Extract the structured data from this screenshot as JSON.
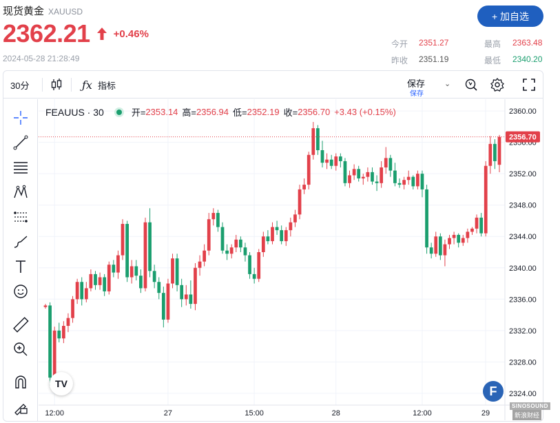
{
  "header": {
    "name": "现货黄金",
    "code": "XAUUSD",
    "price": "2362.21",
    "change": "+0.46%",
    "timestamp": "2024-05-28 21:28:49",
    "add_button": "+ 加自选"
  },
  "stats": {
    "open_label": "今开",
    "open": "2351.27",
    "high_label": "最高",
    "high": "2363.48",
    "prev_label": "昨收",
    "prev": "2351.19",
    "low_label": "最低",
    "low": "2340.20"
  },
  "toolbar": {
    "interval": "30分",
    "indicators": "指标",
    "save": "保存",
    "save_sub": "保存"
  },
  "tools": [
    "crosshair-icon",
    "trend-line-icon",
    "fib-icon",
    "pattern-icon",
    "prediction-icon",
    "brush-icon",
    "text-icon",
    "emoji-icon",
    "ruler-icon",
    "zoom-in-icon",
    "magnet-icon",
    "lock-draw-icon"
  ],
  "legend": {
    "symbol": "FEAUUS · 30",
    "open_label": "开=",
    "open": "2353.14",
    "high_label": "高=",
    "high": "2356.94",
    "low_label": "低=",
    "low": "2352.19",
    "close_label": "收=",
    "close": "2356.70",
    "change": "+3.43 (+0.15%)"
  },
  "colors": {
    "up": "#e2404a",
    "down": "#1a9e6e",
    "accent": "#1f5fbf"
  },
  "logos": {
    "tradingview": "TV",
    "brand_f": "F",
    "watermark": "SINOSOUND",
    "watermark2": "新浪财经"
  },
  "chart_data": {
    "type": "candlestick",
    "y_ticks": [
      "2360.00",
      "2356.00",
      "2352.00",
      "2348.00",
      "2344.00",
      "2340.00",
      "2336.00",
      "2332.00",
      "2328.00",
      "2324.00"
    ],
    "ylim": [
      2322.5,
      2361.5
    ],
    "x_ticks": [
      "12:00",
      "27",
      "15:00",
      "28",
      "12:00",
      "29"
    ],
    "last_price_label": "2356.70",
    "last_price": 2356.7,
    "candles": [
      [
        2335.0,
        2335.4,
        2334.8,
        2335.2
      ],
      [
        2335.2,
        2335.6,
        2325.0,
        2326.0
      ],
      [
        2326.0,
        2332.5,
        2325.6,
        2332.0
      ],
      [
        2332.0,
        2333.0,
        2330.5,
        2331.0
      ],
      [
        2331.0,
        2333.2,
        2330.4,
        2332.6
      ],
      [
        2332.6,
        2334.2,
        2331.8,
        2333.6
      ],
      [
        2333.6,
        2336.4,
        2333.0,
        2336.0
      ],
      [
        2336.0,
        2338.6,
        2335.4,
        2338.2
      ],
      [
        2338.2,
        2338.8,
        2335.2,
        2336.0
      ],
      [
        2336.0,
        2338.2,
        2335.6,
        2337.4
      ],
      [
        2337.4,
        2339.8,
        2337.0,
        2339.2
      ],
      [
        2339.2,
        2339.6,
        2337.2,
        2337.8
      ],
      [
        2337.8,
        2339.4,
        2337.2,
        2338.8
      ],
      [
        2338.8,
        2339.2,
        2336.4,
        2337.0
      ],
      [
        2337.0,
        2340.8,
        2336.6,
        2340.4
      ],
      [
        2340.4,
        2341.0,
        2338.8,
        2339.4
      ],
      [
        2339.4,
        2342.2,
        2338.6,
        2341.6
      ],
      [
        2341.6,
        2346.2,
        2341.0,
        2345.6
      ],
      [
        2345.6,
        2346.0,
        2338.2,
        2338.8
      ],
      [
        2338.8,
        2341.0,
        2338.0,
        2340.2
      ],
      [
        2340.2,
        2341.0,
        2338.4,
        2339.0
      ],
      [
        2339.0,
        2339.8,
        2336.8,
        2337.4
      ],
      [
        2337.4,
        2346.4,
        2337.0,
        2345.8
      ],
      [
        2345.8,
        2347.6,
        2338.8,
        2339.6
      ],
      [
        2339.6,
        2340.4,
        2337.4,
        2338.2
      ],
      [
        2338.2,
        2338.8,
        2336.0,
        2336.8
      ],
      [
        2336.8,
        2337.6,
        2332.4,
        2333.4
      ],
      [
        2333.4,
        2338.6,
        2333.0,
        2338.0
      ],
      [
        2338.0,
        2341.8,
        2337.4,
        2341.2
      ],
      [
        2341.2,
        2341.8,
        2337.0,
        2337.8
      ],
      [
        2337.8,
        2338.6,
        2335.0,
        2336.0
      ],
      [
        2336.0,
        2337.8,
        2335.2,
        2336.6
      ],
      [
        2336.6,
        2338.4,
        2334.8,
        2335.4
      ],
      [
        2335.4,
        2340.6,
        2334.6,
        2340.0
      ],
      [
        2340.0,
        2341.6,
        2339.0,
        2340.8
      ],
      [
        2340.8,
        2343.0,
        2340.2,
        2342.2
      ],
      [
        2342.2,
        2347.0,
        2341.6,
        2346.2
      ],
      [
        2346.2,
        2347.6,
        2345.4,
        2347.0
      ],
      [
        2347.0,
        2347.4,
        2344.6,
        2345.2
      ],
      [
        2345.2,
        2345.8,
        2341.8,
        2342.2
      ],
      [
        2342.2,
        2343.0,
        2341.0,
        2341.8
      ],
      [
        2341.8,
        2343.0,
        2341.2,
        2342.6
      ],
      [
        2342.6,
        2344.2,
        2342.0,
        2343.6
      ],
      [
        2343.6,
        2344.0,
        2342.0,
        2342.6
      ],
      [
        2342.6,
        2343.2,
        2340.8,
        2341.6
      ],
      [
        2341.6,
        2342.0,
        2338.6,
        2339.2
      ],
      [
        2339.2,
        2340.0,
        2338.0,
        2338.6
      ],
      [
        2338.6,
        2342.4,
        2338.2,
        2342.0
      ],
      [
        2342.0,
        2344.6,
        2341.4,
        2344.0
      ],
      [
        2344.0,
        2344.8,
        2343.0,
        2343.4
      ],
      [
        2343.4,
        2345.8,
        2343.0,
        2345.2
      ],
      [
        2345.2,
        2346.0,
        2344.2,
        2344.8
      ],
      [
        2344.8,
        2345.4,
        2343.0,
        2343.4
      ],
      [
        2343.4,
        2345.2,
        2342.8,
        2344.8
      ],
      [
        2344.8,
        2346.4,
        2344.0,
        2345.8
      ],
      [
        2345.8,
        2347.4,
        2345.2,
        2346.8
      ],
      [
        2346.8,
        2350.6,
        2346.2,
        2350.0
      ],
      [
        2350.0,
        2351.4,
        2349.4,
        2350.6
      ],
      [
        2350.6,
        2354.8,
        2350.0,
        2354.4
      ],
      [
        2354.4,
        2358.6,
        2353.8,
        2357.8
      ],
      [
        2357.8,
        2358.2,
        2354.4,
        2355.0
      ],
      [
        2355.0,
        2356.2,
        2352.8,
        2353.4
      ],
      [
        2353.4,
        2354.6,
        2352.6,
        2353.8
      ],
      [
        2353.8,
        2354.4,
        2352.6,
        2353.0
      ],
      [
        2353.0,
        2354.6,
        2352.4,
        2354.2
      ],
      [
        2354.2,
        2354.6,
        2352.8,
        2353.6
      ],
      [
        2353.6,
        2354.0,
        2350.4,
        2350.8
      ],
      [
        2350.8,
        2352.4,
        2350.2,
        2351.8
      ],
      [
        2351.8,
        2353.2,
        2351.2,
        2352.6
      ],
      [
        2352.6,
        2353.0,
        2351.0,
        2351.4
      ],
      [
        2351.4,
        2352.0,
        2350.6,
        2351.6
      ],
      [
        2351.6,
        2352.8,
        2351.0,
        2352.2
      ],
      [
        2352.2,
        2352.8,
        2350.6,
        2351.0
      ],
      [
        2351.0,
        2351.8,
        2349.8,
        2350.8
      ],
      [
        2350.8,
        2353.6,
        2350.2,
        2352.8
      ],
      [
        2352.8,
        2355.4,
        2352.0,
        2354.0
      ],
      [
        2354.0,
        2354.4,
        2351.6,
        2352.4
      ],
      [
        2352.4,
        2353.4,
        2350.4,
        2350.8
      ],
      [
        2350.8,
        2351.4,
        2350.2,
        2350.6
      ],
      [
        2350.6,
        2351.6,
        2350.0,
        2351.2
      ],
      [
        2351.2,
        2352.4,
        2350.6,
        2351.6
      ],
      [
        2351.6,
        2351.8,
        2350.0,
        2350.4
      ],
      [
        2350.4,
        2352.4,
        2350.0,
        2352.0
      ],
      [
        2352.0,
        2352.4,
        2349.0,
        2350.0
      ],
      [
        2350.0,
        2350.6,
        2341.8,
        2342.6
      ],
      [
        2342.6,
        2343.2,
        2341.2,
        2341.8
      ],
      [
        2341.8,
        2344.6,
        2341.4,
        2344.0
      ],
      [
        2344.0,
        2344.4,
        2341.0,
        2341.6
      ],
      [
        2341.6,
        2343.6,
        2340.2,
        2343.0
      ],
      [
        2343.0,
        2344.2,
        2342.4,
        2343.8
      ],
      [
        2343.8,
        2344.6,
        2343.0,
        2344.2
      ],
      [
        2344.2,
        2344.4,
        2342.6,
        2343.2
      ],
      [
        2343.2,
        2344.2,
        2342.8,
        2343.8
      ],
      [
        2343.8,
        2345.0,
        2343.2,
        2344.6
      ],
      [
        2344.6,
        2345.2,
        2344.2,
        2345.0
      ],
      [
        2345.0,
        2346.8,
        2344.4,
        2346.4
      ],
      [
        2346.4,
        2347.0,
        2344.0,
        2344.4
      ],
      [
        2344.4,
        2353.6,
        2344.0,
        2353.0
      ],
      [
        2353.0,
        2356.8,
        2352.0,
        2355.8
      ],
      [
        2355.8,
        2356.4,
        2352.6,
        2353.6
      ],
      [
        2353.14,
        2356.94,
        2352.19,
        2356.7
      ]
    ]
  }
}
